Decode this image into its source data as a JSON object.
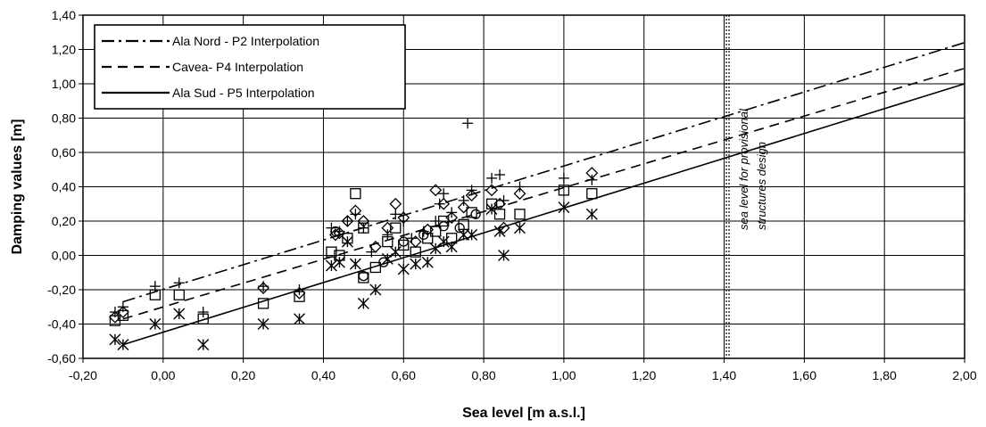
{
  "chart_data": {
    "type": "scatter",
    "xlabel": "Sea level [m a.s.l.]",
    "ylabel": "Damping values [m]",
    "xlim": [
      -0.2,
      2.0
    ],
    "ylim": [
      -0.6,
      1.4
    ],
    "xticks": [
      "-0,20",
      "0,00",
      "0,20",
      "0,40",
      "0,60",
      "0,80",
      "1,00",
      "1,20",
      "1,40",
      "1,60",
      "1,80",
      "2,00"
    ],
    "yticks": [
      "1,40",
      "1,20",
      "1,00",
      "0,80",
      "0,60",
      "0,40",
      "0,20",
      "0,00",
      "-0,20",
      "-0,40",
      "-0,60"
    ],
    "grid": true,
    "legend_position": "top-left",
    "lines": [
      {
        "name": "Ala Nord - P2 Interpolation",
        "style": "dash-dot",
        "x": [
          -0.1,
          2.0
        ],
        "y": [
          -0.27,
          1.24
        ]
      },
      {
        "name": "Cavea- P4 Interpolation",
        "style": "dashed",
        "x": [
          -0.1,
          2.0
        ],
        "y": [
          -0.37,
          1.09
        ]
      },
      {
        "name": "Ala Sud - P5 Interpolation",
        "style": "solid",
        "x": [
          -0.1,
          2.0
        ],
        "y": [
          -0.52,
          1.0
        ]
      }
    ],
    "marker_series": [
      {
        "marker": "plus",
        "points": [
          [
            -0.12,
            -0.33
          ],
          [
            -0.1,
            -0.3
          ],
          [
            -0.02,
            -0.18
          ],
          [
            0.04,
            -0.16
          ],
          [
            0.1,
            -0.33
          ],
          [
            0.25,
            -0.18
          ],
          [
            0.34,
            -0.2
          ],
          [
            0.42,
            0.16
          ],
          [
            0.44,
            0.14
          ],
          [
            0.46,
            0.2
          ],
          [
            0.48,
            0.24
          ],
          [
            0.5,
            0.16
          ],
          [
            0.52,
            0.02
          ],
          [
            0.56,
            0.12
          ],
          [
            0.58,
            0.24
          ],
          [
            0.6,
            0.2
          ],
          [
            0.62,
            0.1
          ],
          [
            0.65,
            0.14
          ],
          [
            0.68,
            0.2
          ],
          [
            0.69,
            0.3
          ],
          [
            0.7,
            0.36
          ],
          [
            0.72,
            0.25
          ],
          [
            0.75,
            0.32
          ],
          [
            0.76,
            0.77
          ],
          [
            0.77,
            0.38
          ],
          [
            0.82,
            0.45
          ],
          [
            0.84,
            0.47
          ],
          [
            0.85,
            0.32
          ],
          [
            0.89,
            0.4
          ],
          [
            1.0,
            0.45
          ],
          [
            1.07,
            0.44
          ]
        ]
      },
      {
        "marker": "diamond",
        "points": [
          [
            -0.12,
            -0.36
          ],
          [
            -0.1,
            -0.33
          ],
          [
            0.25,
            -0.19
          ],
          [
            0.34,
            -0.22
          ],
          [
            0.43,
            0.12
          ],
          [
            0.44,
            0.13
          ],
          [
            0.46,
            0.2
          ],
          [
            0.48,
            0.26
          ],
          [
            0.5,
            0.2
          ],
          [
            0.53,
            0.05
          ],
          [
            0.56,
            0.16
          ],
          [
            0.58,
            0.3
          ],
          [
            0.6,
            0.22
          ],
          [
            0.63,
            0.08
          ],
          [
            0.66,
            0.15
          ],
          [
            0.68,
            0.38
          ],
          [
            0.7,
            0.3
          ],
          [
            0.72,
            0.22
          ],
          [
            0.75,
            0.28
          ],
          [
            0.77,
            0.35
          ],
          [
            0.82,
            0.38
          ],
          [
            0.84,
            0.3
          ],
          [
            0.85,
            0.16
          ],
          [
            0.89,
            0.36
          ],
          [
            1.07,
            0.48
          ]
        ]
      },
      {
        "marker": "square",
        "points": [
          [
            -0.12,
            -0.38
          ],
          [
            -0.1,
            -0.35
          ],
          [
            -0.02,
            -0.23
          ],
          [
            0.04,
            -0.23
          ],
          [
            0.1,
            -0.37
          ],
          [
            0.25,
            -0.28
          ],
          [
            0.34,
            -0.24
          ],
          [
            0.42,
            0.02
          ],
          [
            0.44,
            0.0
          ],
          [
            0.46,
            0.1
          ],
          [
            0.48,
            0.36
          ],
          [
            0.5,
            0.16
          ],
          [
            0.5,
            -0.13
          ],
          [
            0.53,
            -0.07
          ],
          [
            0.56,
            0.08
          ],
          [
            0.58,
            0.16
          ],
          [
            0.6,
            0.06
          ],
          [
            0.63,
            0.02
          ],
          [
            0.66,
            0.1
          ],
          [
            0.68,
            0.14
          ],
          [
            0.7,
            0.2
          ],
          [
            0.72,
            0.1
          ],
          [
            0.75,
            0.18
          ],
          [
            0.77,
            0.25
          ],
          [
            0.82,
            0.3
          ],
          [
            0.84,
            0.24
          ],
          [
            0.89,
            0.24
          ],
          [
            1.0,
            0.38
          ],
          [
            1.07,
            0.36
          ]
        ]
      },
      {
        "marker": "circle",
        "points": [
          [
            0.43,
            0.14
          ],
          [
            0.5,
            -0.12
          ],
          [
            0.55,
            -0.04
          ],
          [
            0.6,
            0.08
          ],
          [
            0.65,
            0.12
          ],
          [
            0.7,
            0.17
          ],
          [
            0.74,
            0.16
          ],
          [
            0.78,
            0.24
          ]
        ]
      },
      {
        "marker": "asterisk",
        "points": [
          [
            -0.12,
            -0.49
          ],
          [
            -0.1,
            -0.52
          ],
          [
            -0.02,
            -0.4
          ],
          [
            0.04,
            -0.34
          ],
          [
            0.1,
            -0.52
          ],
          [
            0.25,
            -0.4
          ],
          [
            0.34,
            -0.37
          ],
          [
            0.42,
            -0.06
          ],
          [
            0.44,
            -0.04
          ],
          [
            0.46,
            0.08
          ],
          [
            0.48,
            -0.05
          ],
          [
            0.5,
            -0.28
          ],
          [
            0.53,
            -0.2
          ],
          [
            0.56,
            -0.02
          ],
          [
            0.58,
            0.02
          ],
          [
            0.6,
            -0.08
          ],
          [
            0.63,
            -0.05
          ],
          [
            0.66,
            -0.04
          ],
          [
            0.68,
            0.04
          ],
          [
            0.7,
            0.08
          ],
          [
            0.72,
            0.05
          ],
          [
            0.75,
            0.12
          ],
          [
            0.77,
            0.12
          ],
          [
            0.82,
            0.27
          ],
          [
            0.84,
            0.14
          ],
          [
            0.85,
            0.0
          ],
          [
            0.89,
            0.16
          ],
          [
            1.0,
            0.28
          ],
          [
            1.07,
            0.24
          ]
        ]
      }
    ],
    "vline": {
      "x": 1.41,
      "label_lines": [
        "sea level for provisional",
        "structures design"
      ]
    }
  },
  "colors": {
    "line": "#000000",
    "grid": "#000000",
    "background": "#ffffff"
  }
}
